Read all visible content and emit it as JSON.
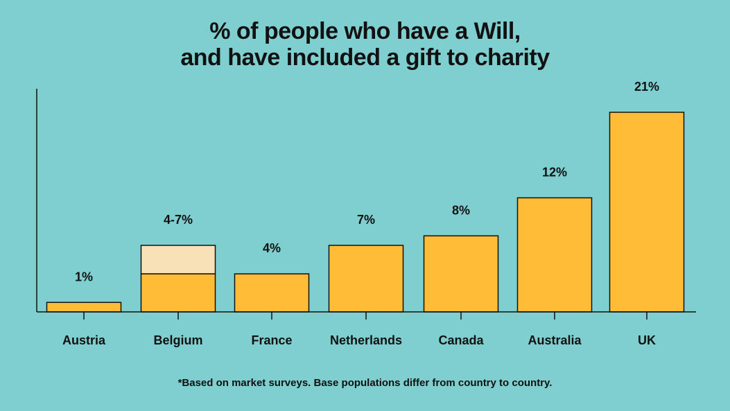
{
  "chart_data": {
    "type": "bar",
    "title_lines": [
      "% of people who have a Will,",
      "and have included a gift to charity"
    ],
    "categories": [
      "Austria",
      "Belgium",
      "France",
      "Netherlands",
      "Canada",
      "Australia",
      "UK"
    ],
    "values": [
      1,
      4,
      4,
      7,
      8,
      12,
      21
    ],
    "range_upper": [
      null,
      7,
      null,
      null,
      null,
      null,
      null
    ],
    "data_labels": [
      "1%",
      "4-7%",
      "4%",
      "7%",
      "8%",
      "12%",
      "21%"
    ],
    "ylim": [
      0,
      21
    ],
    "xlabel": "",
    "ylabel": "",
    "grid": false,
    "legend": "none",
    "footnote": "*Based on market surveys. Base populations differ from country to country."
  },
  "colors": {
    "background": "#7fcfd0",
    "bar": "#ffbc37",
    "range_extension": "#f8e1b6",
    "axis": "#111111"
  }
}
